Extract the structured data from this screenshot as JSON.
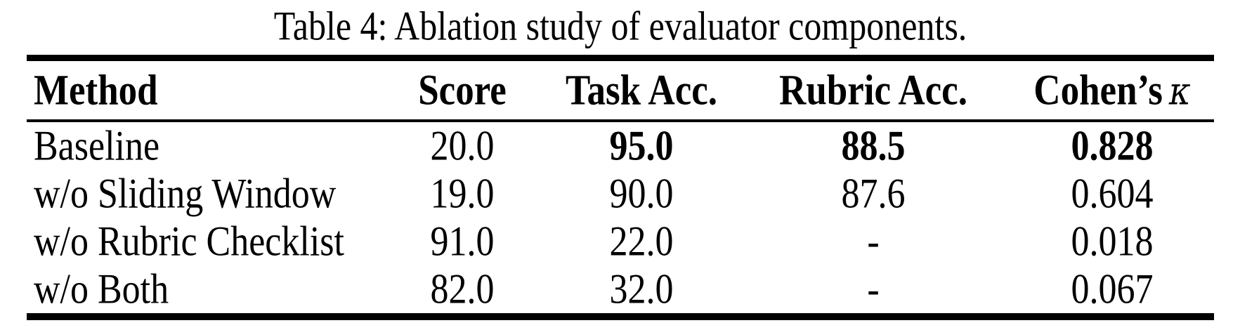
{
  "table": {
    "caption": "Table 4: Ablation study of evaluator components.",
    "columns": [
      {
        "label": "Method"
      },
      {
        "label": "Score"
      },
      {
        "label": "Task Acc."
      },
      {
        "label": "Rubric Acc."
      },
      {
        "label": "Cohen’s",
        "symbol": "κ"
      }
    ],
    "rows": [
      {
        "method": "Baseline",
        "score": "20.0",
        "task_acc": "95.0",
        "rubric_acc": "88.5",
        "cohens_kappa": "0.828"
      },
      {
        "method": "w/o Sliding Window",
        "score": "19.0",
        "task_acc": "90.0",
        "rubric_acc": "87.6",
        "cohens_kappa": "0.604"
      },
      {
        "method": "w/o Rubric Checklist",
        "score": "91.0",
        "task_acc": "22.0",
        "rubric_acc": "-",
        "cohens_kappa": "0.018"
      },
      {
        "method": "w/o Both",
        "score": "82.0",
        "task_acc": "32.0",
        "rubric_acc": "-",
        "cohens_kappa": "0.067"
      }
    ]
  }
}
